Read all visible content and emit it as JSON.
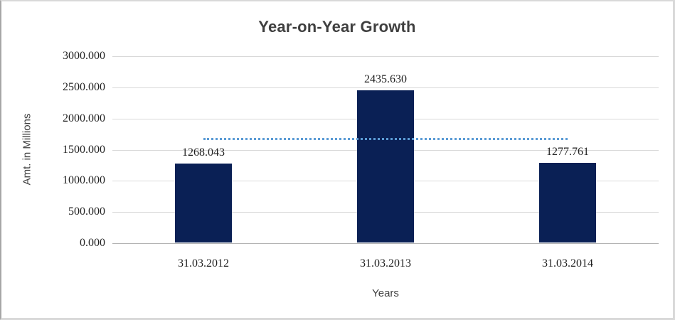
{
  "chart_data": {
    "type": "bar",
    "title": "Year-on-Year Growth",
    "ylabel": "Amt. in Millions",
    "xlabel": "Years",
    "categories": [
      "31.03.2012",
      "31.03.2013",
      "31.03.2014"
    ],
    "values": [
      1268.043,
      2435.63,
      1277.761
    ],
    "data_labels": [
      "1268.043",
      "2435.630",
      "1277.761"
    ],
    "ylim": [
      0,
      3000
    ],
    "ytick_step": 500,
    "ytick_labels": [
      "0.000",
      "500.000",
      "1000.000",
      "1500.000",
      "2000.000",
      "2500.000",
      "3000.000"
    ],
    "grid": true,
    "legend_position": "none",
    "bar_color": "#0A2055",
    "axis_line_color": "#B3B3B3",
    "gridline_color": "#D9D9D9",
    "trendline": {
      "type": "linear",
      "style": "dotted",
      "color": "#5B9BD5",
      "values": [
        1655.62,
        1660.48,
        1665.34
      ]
    }
  }
}
